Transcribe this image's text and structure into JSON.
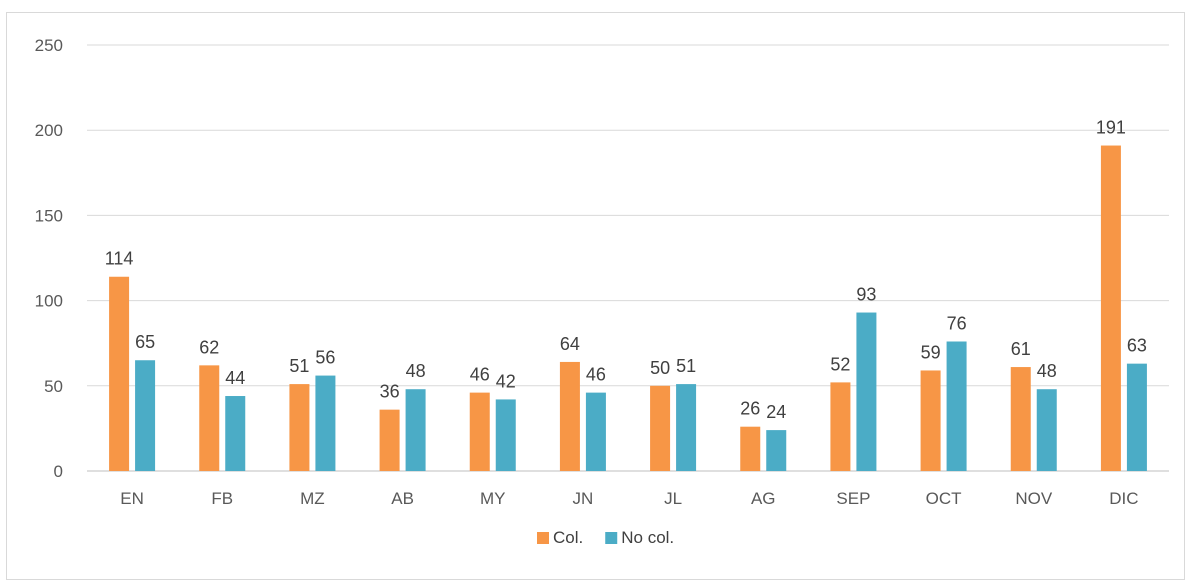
{
  "chart_data": {
    "type": "bar",
    "title": "",
    "xlabel": "",
    "ylabel": "",
    "ylim": [
      0,
      250
    ],
    "yticks": [
      0,
      50,
      100,
      150,
      200,
      250
    ],
    "grid": true,
    "legend_position": "bottom",
    "categories": [
      "EN",
      "FB",
      "MZ",
      "AB",
      "MY",
      "JN",
      "JL",
      "AG",
      "SEP",
      "OCT",
      "NOV",
      "DIC"
    ],
    "series": [
      {
        "name": "Col.",
        "color": "#f79646",
        "values": [
          114,
          62,
          51,
          36,
          46,
          64,
          50,
          26,
          52,
          59,
          61,
          191
        ]
      },
      {
        "name": "No col.",
        "color": "#4bacc6",
        "values": [
          65,
          44,
          56,
          48,
          42,
          46,
          51,
          24,
          93,
          76,
          48,
          63
        ]
      }
    ]
  }
}
